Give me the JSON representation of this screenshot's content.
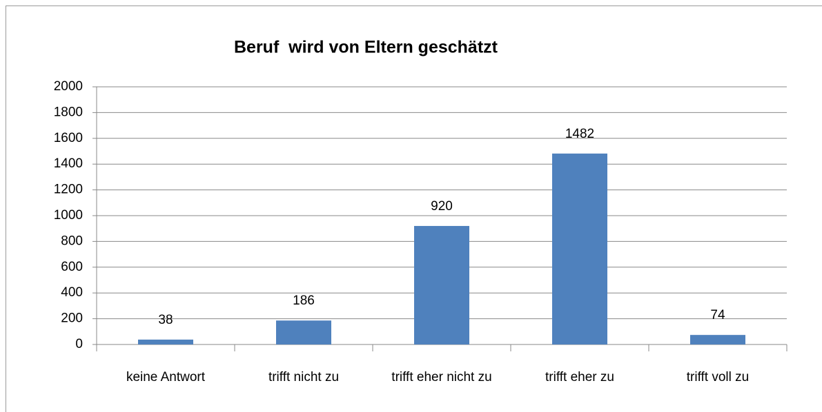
{
  "chart_data": {
    "type": "bar",
    "title": "Beruf  wird von Eltern geschätzt",
    "categories": [
      "keine Antwort",
      "trifft nicht zu",
      "trifft eher nicht zu",
      "trifft eher zu",
      "trifft voll zu"
    ],
    "values": [
      38,
      186,
      920,
      1482,
      74
    ],
    "color": "#4f81bd",
    "ylim": [
      0,
      2000
    ],
    "yticks": [
      0,
      200,
      400,
      600,
      800,
      1000,
      1200,
      1400,
      1600,
      1800,
      2000
    ],
    "grid": true
  }
}
